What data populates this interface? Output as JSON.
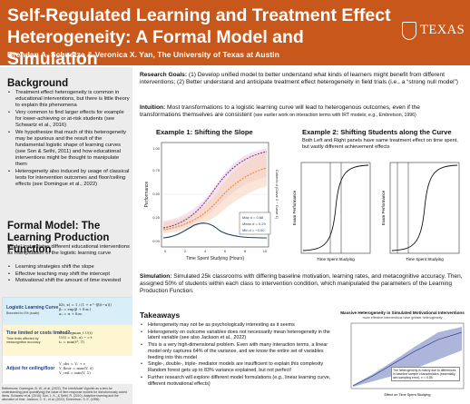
{
  "header": {
    "title": "Self-Regulated Learning and Treatment Effect Heterogeneity: A Formal Model and Simulation",
    "authors": "Brendan A. Schuetze & Veronica X. Yan, The University of Texas at Austin",
    "logo_text": "TEXAS",
    "logo_icon": "ut-shield-icon",
    "accent_color": "#c8571b"
  },
  "background": {
    "heading": "Background",
    "bullets": [
      "Treatment effect heterogeneity is common in educational interventions, but there is little theory to explain this phenomena",
      "Very common to find larger effects for example for lower-achieving or at-risk students (see Schwartz et al., 2016)",
      "We hypothesize that much of this heterogeneity may be spurious and the result of the fundamental logistic shape of learning curves (see Son & Sethi, 2011) and how educational interventions might be thought to manipulate them",
      "Heterogeneity also induced by usage of classical tests for intervention outcomes and floor/ceiling effects (see Domingue et al., 2022)"
    ]
  },
  "formal_model": {
    "heading": "Formal Model: The Learning Production Function",
    "intro": "Model instantiates different educational interventions as manipulation of the logistic learning curve",
    "bullets": [
      "Learning strategies shift the slope",
      "Effective teaching may shift the intercept",
      "Motivational shift the amount of time invested"
    ],
    "equations": [
      {
        "label": "Logistic Learning Curve",
        "sub": "Bounded to 0% (scale)",
        "lines": [
          "K(t, x) = 1 / (1 + e^-(β(t−a)))",
          "β₀ = exp(β + δ₁x₁)",
          "a₀ = α + δ₂x₂"
        ]
      },
      {
        "label": "Time limited or costs limited?",
        "sub": "Time limits affected by metacognitive accuracy",
        "lines": [
          "t* = argmax_t U(t)",
          "U(t) = K(t, x) − c·t",
          "t₀ = min(t*, T)"
        ]
      },
      {
        "label": "Adjust for ceiling/floor",
        "sub": "",
        "lines": [
          "Y_obs = Y₀ + ε",
          "Y_floor = max(Y, 0)",
          "Y_ceil = min(Y, 1)"
        ]
      }
    ],
    "references": "References: Domingue, B. W., et al. (2022). The InterModel Vigorish as a lens for understanding (and quantifying) the value of item response models for dichotomously coded items. Schwartz et al. (2016). Son, L. K., & Sethi, R. (2010). Adaptive learning and the allocation of time. Jackson, C. K., et al. (2022). Embretson, S. E. (1996)."
  },
  "research_goals": {
    "label": "Research Goals:",
    "text": " (1) Develop unified model to better understand what kinds of learners might benefit from different interventions; (2) Better understand and anticipate treatment effect heterogeneity in field trials (i.e., a “strong null model”)"
  },
  "intuition": {
    "label": "Intuition:",
    "text": " Most transformations to a logistic learning curve will lead to heterogenous outcomes, even if the transformations themselves are consistent ",
    "note": "(see earlier work on interaction terms with IRT models; e.g., Embretson, 1996)"
  },
  "example1": {
    "title": "Example 1: Shifting the Slope",
    "xlabel": "Time Spent Studying (Hours)",
    "ylabel": "Performance",
    "ylabel_right": "Cohen's d (Curve 2 − Curve 1)",
    "yticks": [
      "1.00",
      "0.75",
      "0.50",
      "0.25",
      "0.00"
    ],
    "xticks": [
      "0",
      "2",
      "4",
      "6",
      "8",
      "10"
    ],
    "legend": [
      "Max d = 0.68",
      "Mean d = 0.29",
      "Min d = −0.00"
    ]
  },
  "example2": {
    "title": "Example 2: Shifting Students along the Curve",
    "description": "Both Left and Right panels have same treatment effect on time spent, but vastly different achievement effects",
    "xlabel": "Time Spent Studying",
    "ylabel": "Exam Performance"
  },
  "simulation": {
    "label": "Simulation:",
    "text": " Simulated 25k classrooms with differing baseline motivation, learning rates, and metacognitive accuracy. Then, assigned 50% of students within each class to intervention condition, which manipulated the parameters of the Learning Production Function."
  },
  "takeaways": {
    "heading": "Takeaways",
    "bullets": [
      "Heterogeneity may not be as psychologically interesting as it seems",
      "Heterogeneity on outcome variables does not necessarily mean heterogeneity in the latent variable (see also Jackson et al., 2022)",
      "This is a very high-dimensional problem. Even with many interaction terms, a linear model only captures 64% of the variance, and we know the entire set of variables feeding into this model",
      "Single-, double-, triple- mediator models are insufficient to explain this complexity Random forest gets up to 83% variance explained, but not perfect!",
      "Further research will explore different model formulations (e.g., linear learning curve, different motivational effects)"
    ]
  },
  "massive_chart": {
    "title": "Massive Heterogeneity in Simulated Motivational Interventions",
    "subtitle": "more effective interventions have greater heterogeneity",
    "xlabel": "Effect on Time Spent Studying",
    "annotation": "The heterogeneity is mainly due to differences in baseline sample characteristics (essentially, aim sampling error), r² = 0.85"
  }
}
